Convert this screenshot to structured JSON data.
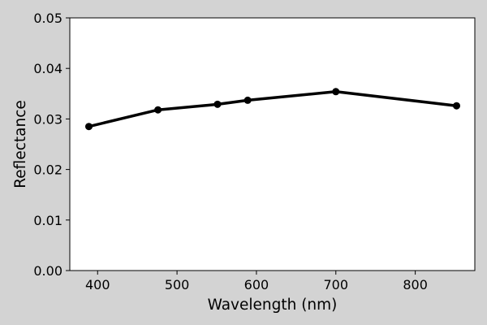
{
  "chart_data": {
    "type": "line",
    "title": "",
    "xlabel": "Wavelength (nm)",
    "ylabel": "Reflectance",
    "xlim": [
      365,
      875
    ],
    "ylim": [
      0,
      0.05
    ],
    "xticks": [
      400,
      500,
      600,
      700,
      800
    ],
    "yticks": [
      0,
      0.01,
      0.02,
      0.03,
      0.04,
      0.05
    ],
    "xtick_labels": [
      "400",
      "500",
      "600",
      "700",
      "800"
    ],
    "ytick_labels": [
      "0.00",
      "0.01",
      "0.02",
      "0.03",
      "0.04",
      "0.05"
    ],
    "grid": false,
    "line_color": "#000000",
    "background_color": "#d3d3d3",
    "series": [
      {
        "x": [
          389,
          476,
          551,
          589,
          700,
          852
        ],
        "y": [
          0.0285,
          0.0318,
          0.0329,
          0.0337,
          0.0354,
          0.0326
        ]
      }
    ]
  }
}
